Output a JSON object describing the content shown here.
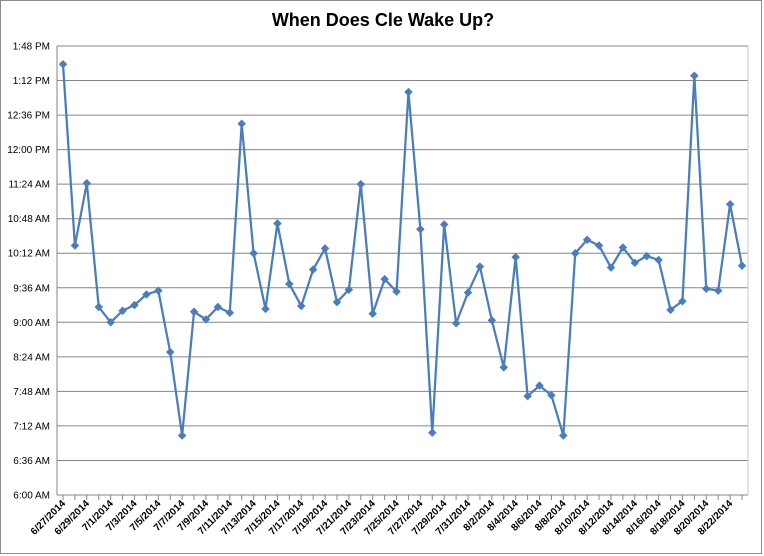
{
  "chart_data": {
    "type": "line",
    "title": "When Does Cle Wake Up?",
    "xlabel": "",
    "ylabel": "",
    "y_unit": "time of day (HH:MM)",
    "ylim": [
      "6:00",
      "13:48"
    ],
    "y_ticks": [
      "6:00 AM",
      "6:36 AM",
      "7:12 AM",
      "7:48 AM",
      "8:24 AM",
      "9:00 AM",
      "9:36 AM",
      "10:12 AM",
      "10:48 AM",
      "11:24 AM",
      "12:00 PM",
      "12:36 PM",
      "1:12 PM",
      "1:48 PM"
    ],
    "x_tick_labels": [
      "6/27/2014",
      "6/29/2014",
      "7/1/2014",
      "7/3/2014",
      "7/5/2014",
      "7/7/2014",
      "7/9/2014",
      "7/11/2014",
      "7/13/2014",
      "7/15/2014",
      "7/17/2014",
      "7/19/2014",
      "7/21/2014",
      "7/23/2014",
      "7/25/2014",
      "7/27/2014",
      "7/29/2014",
      "7/31/2014",
      "8/2/2014",
      "8/4/2014",
      "8/6/2014",
      "8/8/2014",
      "8/10/2014",
      "8/12/2014",
      "8/14/2014",
      "8/16/2014",
      "8/18/2014",
      "8/20/2014",
      "8/22/2014"
    ],
    "grid": true,
    "legend": "none",
    "series": [
      {
        "color": "#4a7ebb",
        "x": [
          "6/27/2014",
          "6/28/2014",
          "6/29/2014",
          "6/30/2014",
          "7/1/2014",
          "7/2/2014",
          "7/3/2014",
          "7/4/2014",
          "7/5/2014",
          "7/6/2014",
          "7/7/2014",
          "7/8/2014",
          "7/9/2014",
          "7/10/2014",
          "7/11/2014",
          "7/12/2014",
          "7/13/2014",
          "7/14/2014",
          "7/15/2014",
          "7/16/2014",
          "7/17/2014",
          "7/18/2014",
          "7/19/2014",
          "7/20/2014",
          "7/21/2014",
          "7/22/2014",
          "7/23/2014",
          "7/24/2014",
          "7/25/2014",
          "7/26/2014",
          "7/27/2014",
          "7/28/2014",
          "7/29/2014",
          "7/30/2014",
          "7/31/2014",
          "8/1/2014",
          "8/2/2014",
          "8/3/2014",
          "8/4/2014",
          "8/5/2014",
          "8/6/2014",
          "8/7/2014",
          "8/8/2014",
          "8/9/2014",
          "8/10/2014",
          "8/11/2014",
          "8/12/2014",
          "8/13/2014",
          "8/14/2014",
          "8/15/2014",
          "8/16/2014",
          "8/17/2014",
          "8/18/2014",
          "8/19/2014",
          "8/20/2014",
          "8/21/2014",
          "8/22/2014",
          "8/23/2014"
        ],
        "y": [
          "13:29",
          "10:20",
          "11:25",
          "9:16",
          "9:00",
          "9:12",
          "9:18",
          "9:29",
          "9:33",
          "8:29",
          "7:02",
          "9:11",
          "9:03",
          "9:16",
          "9:10",
          "12:27",
          "10:12",
          "9:14",
          "10:43",
          "9:40",
          "9:17",
          "9:55",
          "10:17",
          "9:21",
          "9:34",
          "11:24",
          "9:09",
          "9:45",
          "9:32",
          "13:00",
          "10:37",
          "7:05",
          "10:42",
          "8:59",
          "9:31",
          "9:58",
          "9:02",
          "8:13",
          "10:08",
          "7:43",
          "7:54",
          "7:44",
          "7:02",
          "10:12",
          "10:26",
          "10:20",
          "9:57",
          "10:18",
          "10:02",
          "10:09",
          "10:05",
          "9:13",
          "9:22",
          "13:17",
          "9:35",
          "9:33",
          "11:03",
          "9:59"
        ]
      }
    ]
  }
}
